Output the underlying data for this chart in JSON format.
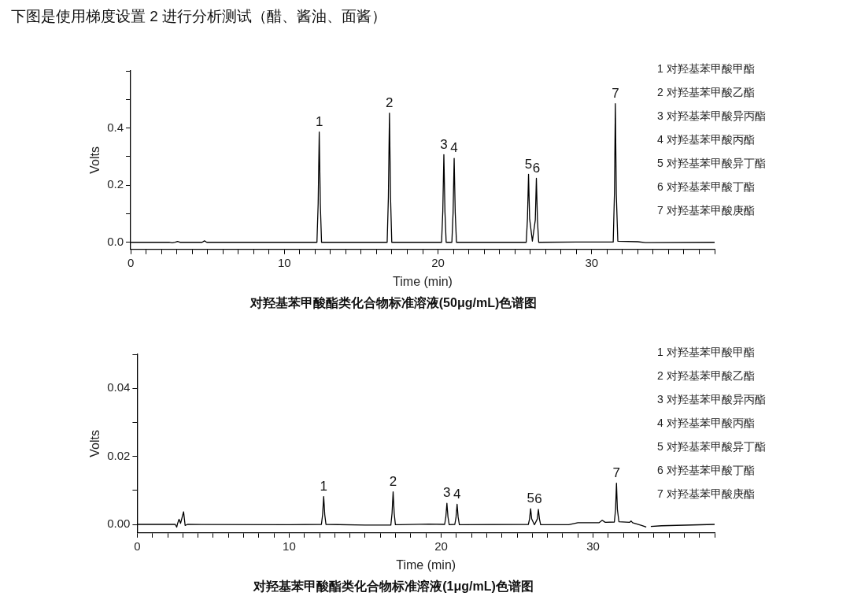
{
  "chart_data": [
    {
      "type": "line",
      "subtitle": "下图是使用梯度设置 2 进行分析测试（醋、酱油、面酱）",
      "title": "对羟基苯甲酸酯类化合物标准溶液(50μg/mL)色谱图",
      "xlabel": "Time (min)",
      "ylabel": "Volts",
      "grid": false,
      "legend": false,
      "marker": "none",
      "line_style": "solid",
      "xlim": [
        0,
        38
      ],
      "ylim": [
        -0.025,
        0.6
      ],
      "xticks": [
        0,
        {
          "value": 1,
          "label": null
        },
        {
          "value": 2,
          "label": null
        },
        {
          "value": 3,
          "label": null
        },
        {
          "value": 4,
          "label": null
        },
        {
          "value": 5,
          "label": null
        },
        {
          "value": 6,
          "label": null
        },
        {
          "value": 7,
          "label": null
        },
        {
          "value": 8,
          "label": null
        },
        {
          "value": 9,
          "label": null
        },
        10,
        {
          "value": 11,
          "label": null
        },
        {
          "value": 12,
          "label": null
        },
        {
          "value": 13,
          "label": null
        },
        {
          "value": 14,
          "label": null
        },
        {
          "value": 15,
          "label": null
        },
        {
          "value": 16,
          "label": null
        },
        {
          "value": 17,
          "label": null
        },
        {
          "value": 18,
          "label": null
        },
        {
          "value": 19,
          "label": null
        },
        20,
        {
          "value": 21,
          "label": null
        },
        {
          "value": 22,
          "label": null
        },
        {
          "value": 23,
          "label": null
        },
        {
          "value": 24,
          "label": null
        },
        {
          "value": 25,
          "label": null
        },
        {
          "value": 26,
          "label": null
        },
        {
          "value": 27,
          "label": null
        },
        {
          "value": 28,
          "label": null
        },
        {
          "value": 29,
          "label": null
        },
        30,
        {
          "value": 31,
          "label": null
        },
        {
          "value": 32,
          "label": null
        },
        {
          "value": 33,
          "label": null
        },
        {
          "value": 34,
          "label": null
        },
        {
          "value": 35,
          "label": null
        },
        {
          "value": 36,
          "label": null
        },
        {
          "value": 37,
          "label": null
        },
        {
          "value": 38,
          "label": null
        }
      ],
      "yticks": [
        {
          "value": 0,
          "label": "0.0"
        },
        {
          "value": 0.1,
          "label": null
        },
        0.2,
        {
          "value": 0.3,
          "label": null
        },
        0.4,
        {
          "value": 0.5,
          "label": null
        },
        {
          "value": 0.6,
          "label": null
        }
      ],
      "series": [
        {
          "color": "#000000",
          "x": [
            0,
            2.5,
            2.7,
            2.9,
            3.05,
            3.2,
            4.65,
            4.8,
            4.95,
            12.12,
            12.2,
            12.27,
            12.34,
            12.42,
            16.69,
            16.77,
            16.84,
            16.91,
            16.99,
            20.23,
            20.31,
            20.38,
            20.45,
            20.53,
            20.9,
            20.98,
            21.05,
            21.12,
            21.2,
            25.74,
            25.82,
            25.89,
            25.96,
            26.14,
            26.33,
            26.4,
            26.47,
            26.55,
            29,
            31.4,
            31.48,
            31.54,
            31.6,
            31.7,
            33,
            33.5,
            38
          ],
          "values": [
            0,
            0,
            -0.002,
            0,
            0.003,
            0,
            0,
            0.005,
            0,
            0,
            0.135,
            0.386,
            0.135,
            0,
            0,
            0.158,
            0.452,
            0.158,
            0,
            0,
            0.107,
            0.307,
            0.107,
            0,
            0,
            0.103,
            0.294,
            0.103,
            0,
            0,
            0.083,
            0.238,
            0.083,
            0.004,
            0.078,
            0.224,
            0.078,
            0,
            0.001,
            0.001,
            0.17,
            0.485,
            0.17,
            0.004,
            0.002,
            -0.001,
            0
          ]
        }
      ],
      "annotations": [
        {
          "text": "1",
          "x": 12.27,
          "y": 0.386
        },
        {
          "text": "2",
          "x": 16.84,
          "y": 0.452
        },
        {
          "text": "3",
          "x": 20.38,
          "y": 0.307
        },
        {
          "text": "4",
          "x": 21.05,
          "y": 0.294
        },
        {
          "text": "5",
          "x": 25.89,
          "y": 0.238
        },
        {
          "text": "6",
          "x": 26.4,
          "y": 0.224
        },
        {
          "text": "7",
          "x": 31.54,
          "y": 0.485
        },
        "1 对羟基苯甲酸甲酯",
        "2 对羟基苯甲酸乙酯",
        "3 对羟基苯甲酸异丙酯",
        "4 对羟基苯甲酸丙酯",
        "5 对羟基苯甲酸异丁酯",
        "6 对羟基苯甲酸丁酯",
        "7 对羟基苯甲酸庚酯"
      ]
    },
    {
      "type": "line",
      "title": "对羟基苯甲酸酯类化合物标准溶液(1μg/mL)色谱图",
      "xlabel": "Time (min)",
      "ylabel": "Volts",
      "grid": false,
      "legend": false,
      "marker": "none",
      "line_style": "solid",
      "xlim": [
        0,
        38
      ],
      "ylim": [
        -0.0025,
        0.05
      ],
      "xticks": [
        0,
        {
          "value": 1,
          "label": null
        },
        {
          "value": 2,
          "label": null
        },
        {
          "value": 3,
          "label": null
        },
        {
          "value": 4,
          "label": null
        },
        {
          "value": 5,
          "label": null
        },
        {
          "value": 6,
          "label": null
        },
        {
          "value": 7,
          "label": null
        },
        {
          "value": 8,
          "label": null
        },
        {
          "value": 9,
          "label": null
        },
        10,
        {
          "value": 11,
          "label": null
        },
        {
          "value": 12,
          "label": null
        },
        {
          "value": 13,
          "label": null
        },
        {
          "value": 14,
          "label": null
        },
        {
          "value": 15,
          "label": null
        },
        {
          "value": 16,
          "label": null
        },
        {
          "value": 17,
          "label": null
        },
        {
          "value": 18,
          "label": null
        },
        {
          "value": 19,
          "label": null
        },
        20,
        {
          "value": 21,
          "label": null
        },
        {
          "value": 22,
          "label": null
        },
        {
          "value": 23,
          "label": null
        },
        {
          "value": 24,
          "label": null
        },
        {
          "value": 25,
          "label": null
        },
        {
          "value": 26,
          "label": null
        },
        {
          "value": 27,
          "label": null
        },
        {
          "value": 28,
          "label": null
        },
        {
          "value": 29,
          "label": null
        },
        30,
        {
          "value": 31,
          "label": null
        },
        {
          "value": 32,
          "label": null
        },
        {
          "value": 33,
          "label": null
        },
        {
          "value": 34,
          "label": null
        },
        {
          "value": 35,
          "label": null
        },
        {
          "value": 36,
          "label": null
        },
        {
          "value": 37,
          "label": null
        },
        {
          "value": 38,
          "label": null
        }
      ],
      "yticks": [
        {
          "value": 0,
          "label": "0.00"
        },
        {
          "value": 0.01,
          "label": null
        },
        {
          "value": 0.02,
          "label": "0.02"
        },
        {
          "value": 0.03,
          "label": null
        },
        {
          "value": 0.04,
          "label": "0.04"
        },
        {
          "value": 0.05,
          "label": null
        }
      ],
      "series": [
        {
          "color": "#000000",
          "x": [
            0,
            2.5,
            2.6,
            2.65,
            2.75,
            2.85,
            3.05,
            3.15,
            3.3,
            10,
            12.12,
            12.2,
            12.27,
            12.34,
            12.42,
            15,
            16.69,
            16.77,
            16.84,
            16.91,
            16.99,
            19.2,
            20.23,
            20.31,
            20.38,
            20.45,
            20.53,
            20.9,
            20.98,
            21.05,
            21.12,
            21.2,
            25.74,
            25.82,
            25.89,
            25.96,
            26.14,
            26.33,
            26.4,
            26.47,
            26.55,
            28.4,
            29,
            30.4,
            30.6,
            30.8,
            31.4,
            31.48,
            31.54,
            31.6,
            31.7,
            32.4,
            32.5,
            32.6,
            33.2,
            33.5,
            33.6,
            33.8,
            34.5,
            38
          ],
          "values": [
            0,
            0,
            -0.0008,
            0.0002,
            0.0015,
            0.0003,
            0.0037,
            -0.0003,
            0,
            -0.0001,
            0,
            0.0029,
            0.0082,
            0.0029,
            0,
            -0.0002,
            -0.0002,
            0.0033,
            0.0096,
            0.0033,
            -0.0001,
            0.0001,
            0,
            0.0022,
            0.0062,
            0.0022,
            -0.0001,
            0,
            0.0021,
            0.0059,
            0.0021,
            -0.0001,
            0,
            0.0016,
            0.0046,
            0.0016,
            -0.0001,
            0.0016,
            0.0044,
            0.0016,
            -0.0001,
            -0.0001,
            0.0005,
            0.0005,
            0.0012,
            0.0006,
            0.0007,
            0.0044,
            0.0121,
            0.0044,
            0.0008,
            0.0006,
            0.001,
            0.0005,
            -0.0003,
            -0.0008,
            null,
            -0.0006,
            -0.0004,
            0
          ]
        }
      ],
      "annotations": [
        {
          "text": "1",
          "x": 12.27,
          "y": 0.0082
        },
        {
          "text": "2",
          "x": 16.84,
          "y": 0.0096
        },
        {
          "text": "3",
          "x": 20.38,
          "y": 0.0062
        },
        {
          "text": "4",
          "x": 21.05,
          "y": 0.0059
        },
        {
          "text": "5",
          "x": 25.89,
          "y": 0.0046
        },
        {
          "text": "6",
          "x": 26.4,
          "y": 0.0044
        },
        {
          "text": "7",
          "x": 31.54,
          "y": 0.0121
        },
        "1 对羟基苯甲酸甲酯",
        "2 对羟基苯甲酸乙酯",
        "3 对羟基苯甲酸异丙酯",
        "4 对羟基苯甲酸丙酯",
        "5 对羟基苯甲酸异丁酯",
        "6 对羟基苯甲酸丁酯",
        "7 对羟基苯甲酸庚酯"
      ]
    }
  ]
}
